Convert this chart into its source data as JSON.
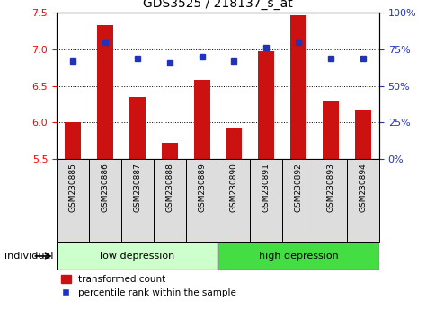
{
  "title": "GDS3525 / 218137_s_at",
  "samples": [
    "GSM230885",
    "GSM230886",
    "GSM230887",
    "GSM230888",
    "GSM230889",
    "GSM230890",
    "GSM230891",
    "GSM230892",
    "GSM230893",
    "GSM230894"
  ],
  "transformed_count": [
    6.0,
    7.33,
    6.35,
    5.72,
    6.58,
    5.92,
    6.97,
    7.47,
    6.3,
    6.18
  ],
  "percentile_rank": [
    67,
    80,
    69,
    66,
    70,
    67,
    76,
    80,
    69,
    69
  ],
  "ylim_left": [
    5.5,
    7.5
  ],
  "ylim_right": [
    0,
    100
  ],
  "yticks_left": [
    5.5,
    6.0,
    6.5,
    7.0,
    7.5
  ],
  "yticks_right": [
    0,
    25,
    50,
    75,
    100
  ],
  "ytick_labels_right": [
    "0%",
    "25%",
    "50%",
    "75%",
    "100%"
  ],
  "bar_color": "#cc1111",
  "dot_color": "#2233bb",
  "group1_label": "low depression",
  "group2_label": "high depression",
  "group1_color": "#ccffcc",
  "group2_color": "#44dd44",
  "group1_count": 5,
  "group2_count": 5,
  "individual_label": "individual",
  "legend_bar_label": "transformed count",
  "legend_dot_label": "percentile rank within the sample",
  "baseline": 5.5,
  "sample_box_color": "#dddddd",
  "title_fontsize": 10
}
